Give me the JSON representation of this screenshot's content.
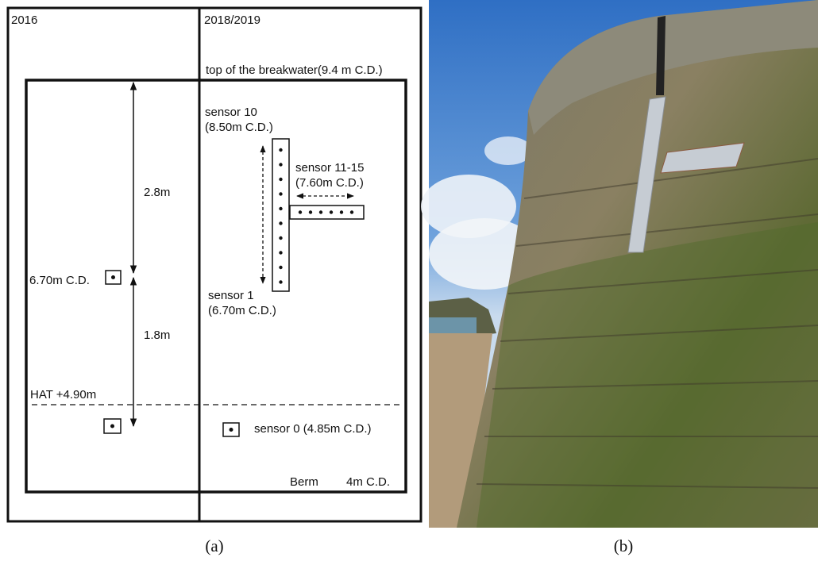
{
  "panel_a": {
    "period_left": "2016",
    "period_right": "2018/2019",
    "top_label": "top of the breakwater(9.4 m C.D.)",
    "sensor_10": "sensor 10",
    "sensor_10_level": "(8.50m C.D.)",
    "sensor_11_15": "sensor 11-15",
    "sensor_11_15_level": "(7.60m C.D.)",
    "distance_upper": "2.8m",
    "level_2016": "6.70m C.D.",
    "sensor_1": "sensor 1",
    "sensor_1_level": "(6.70m C.D.)",
    "distance_lower": "1.8m",
    "hat_label": "HAT +4.90m",
    "sensor_0": "sensor 0 (4.85m C.D.)",
    "berm": "Berm",
    "berm_level": "4m C.D."
  },
  "captions": [
    "(a)",
    "(b)"
  ]
}
